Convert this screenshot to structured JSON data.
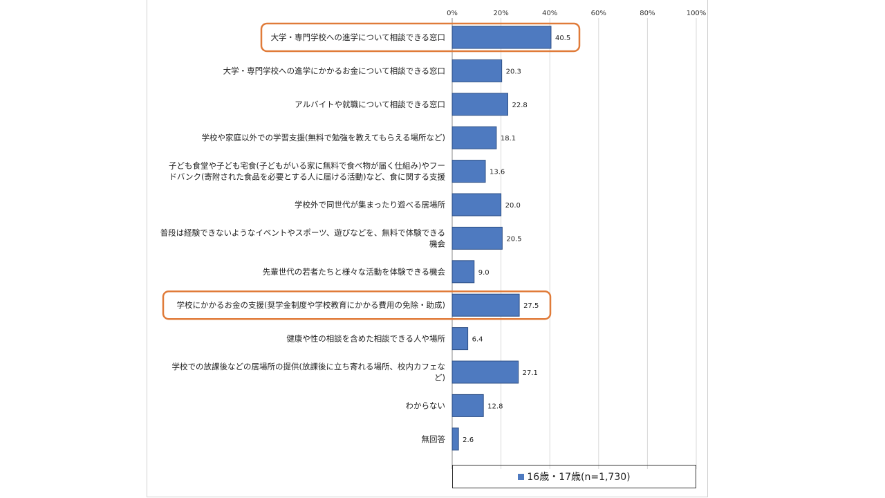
{
  "chart_data": {
    "type": "bar",
    "orientation": "horizontal",
    "categories": [
      "大学・専門学校への進学について相談できる窓口",
      "大学・専門学校への進学にかかるお金について相談できる窓口",
      "アルバイトや就職について相談できる窓口",
      "学校や家庭以外での学習支援(無料で勉強を教えてもらえる場所など)",
      "子ども食堂や子ども宅食(子どもがいる家に無料で食べ物が届く仕組み)やフードバンク(寄附された食品を必要とする人に届ける活動)など、食に関する支援",
      "学校外で同世代が集まったり遊べる居場所",
      "普段は経験できないようなイベントやスポーツ、遊びなどを、無料で体験できる機会",
      "先輩世代の若者たちと様々な活動を体験できる機会",
      "学校にかかるお金の支援(奨学金制度や学校教育にかかる費用の免除・助成)",
      "健康や性の相談を含めた相談できる人や場所",
      "学校での放課後などの居場所の提供(放課後に立ち寄れる場所、校内カフェなど)",
      "わからない",
      "無回答"
    ],
    "category_lines": [
      [
        "大学・専門学校への進学について相談できる窓口"
      ],
      [
        "大学・専門学校への進学にかかるお金について相談できる窓口"
      ],
      [
        "アルバイトや就職について相談できる窓口"
      ],
      [
        "学校や家庭以外での学習支援(無料で勉強を教えてもらえる場所など)"
      ],
      [
        "子ども食堂や子ども宅食(子どもがいる家に無料で食べ物が届く仕組み)やフー",
        "ドバンク(寄附された食品を必要とする人に届ける活動)など、食に関する支援"
      ],
      [
        "学校外で同世代が集まったり遊べる居場所"
      ],
      [
        "普段は経験できないようなイベントやスポーツ、遊びなどを、無料で体験できる",
        "機会"
      ],
      [
        "先輩世代の若者たちと様々な活動を体験できる機会"
      ],
      [
        "学校にかかるお金の支援(奨学金制度や学校教育にかかる費用の免除・助成)"
      ],
      [
        "健康や性の相談を含めた相談できる人や場所"
      ],
      [
        "学校での放課後などの居場所の提供(放課後に立ち寄れる場所、校内カフェな",
        "ど)"
      ],
      [
        "わからない"
      ],
      [
        "無回答"
      ]
    ],
    "value_labels": [
      "40.5",
      "20.3",
      "22.8",
      "18.1",
      "13.6",
      "20.0",
      "20.5",
      "9.0",
      "27.5",
      "6.4",
      "27.1",
      "12.8",
      "2.6"
    ],
    "series": [
      {
        "name": "16歳・17歳(n=1,730)",
        "values": [
          40.5,
          20.3,
          22.8,
          18.1,
          13.6,
          20.0,
          20.5,
          9.0,
          27.5,
          6.4,
          27.1,
          12.8,
          2.6
        ]
      }
    ],
    "x_ticks": [
      "0%",
      "20%",
      "40%",
      "60%",
      "80%",
      "100%"
    ],
    "xlim": [
      0,
      100
    ],
    "grid": true,
    "legend_position": "bottom-right",
    "highlighted_categories": [
      0,
      8
    ],
    "bar_color": "#4e7ac0",
    "bar_border_color": "#2e4f85",
    "highlight_color": "#e07b39",
    "grid_color": "#d9d9d9"
  },
  "legend": {
    "label": "16歳・17歳(n=1,730)"
  }
}
